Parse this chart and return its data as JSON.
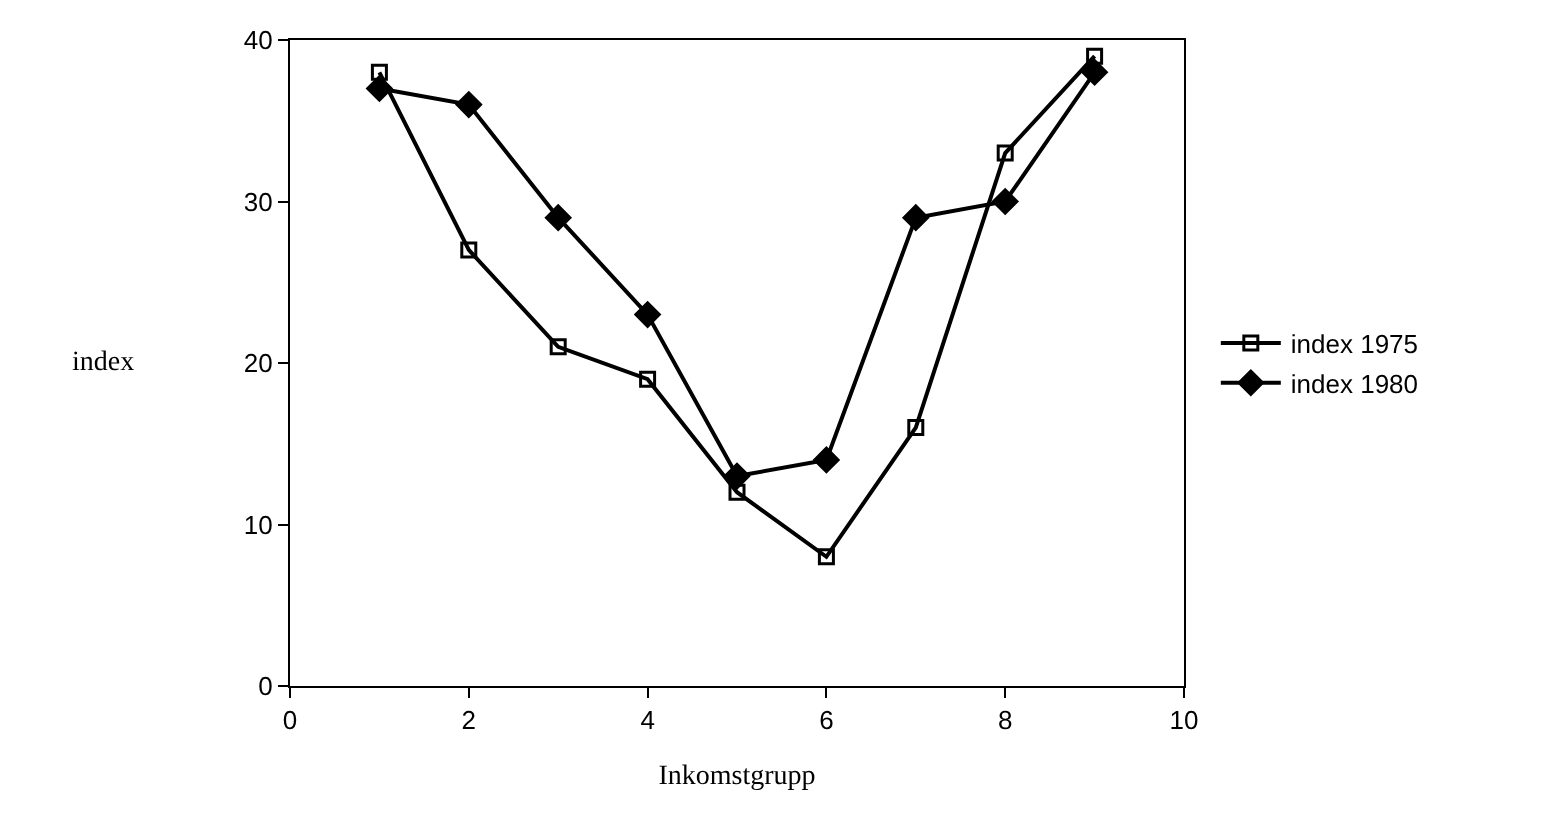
{
  "chart_data": {
    "type": "line",
    "xlabel": "Inkomstgrupp",
    "ylabel": "index",
    "x": [
      1,
      2,
      3,
      4,
      5,
      6,
      7,
      8,
      9
    ],
    "series": [
      {
        "name": "index 1975",
        "color": "#000000",
        "marker": "square",
        "values": [
          38,
          27,
          21,
          19,
          12,
          8,
          16,
          33,
          39
        ]
      },
      {
        "name": "index 1980",
        "color": "#000000",
        "marker": "diamond",
        "values": [
          37,
          36,
          29,
          23,
          13,
          14,
          29,
          30,
          38
        ]
      }
    ],
    "xlim": [
      0,
      10
    ],
    "xticks": [
      0,
      2,
      4,
      6,
      8,
      10
    ],
    "ylim": [
      0,
      40
    ],
    "yticks": [
      0,
      10,
      20,
      30,
      40
    ],
    "grid": false,
    "legend": "right",
    "line_style": "solid"
  }
}
